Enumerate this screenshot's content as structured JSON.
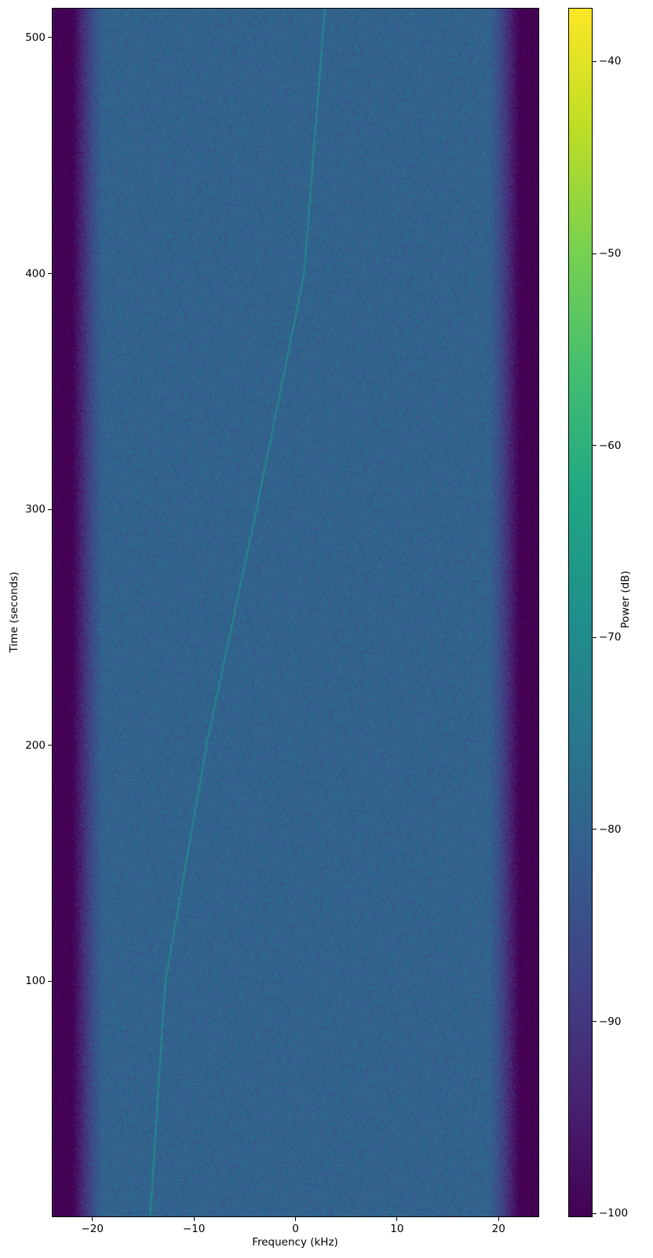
{
  "chart_data": {
    "type": "heatmap",
    "title": "",
    "xlabel": "Frequency (kHz)",
    "ylabel": "Time (seconds)",
    "xlim": [
      -24,
      24
    ],
    "ylim": [
      0,
      512.6
    ],
    "xticks": [
      -20,
      -10,
      0,
      10,
      20
    ],
    "xtick_labels": [
      "−20",
      "−10",
      "0",
      "10",
      "20"
    ],
    "yticks": [
      100,
      200,
      300,
      400,
      500
    ],
    "ytick_labels": [
      "100",
      "200",
      "300",
      "400",
      "500"
    ],
    "colormap": "viridis",
    "colorbar": {
      "label": "Power (dB)",
      "range": [
        -100.2,
        -37.2
      ],
      "ticks": [
        -40,
        -50,
        -60,
        -70,
        -80,
        -90,
        -100
      ],
      "tick_labels": [
        "−40",
        "−50",
        "−60",
        "−70",
        "−80",
        "−90",
        "−100"
      ]
    },
    "noise_floor_db": -80,
    "band_edge_db": -100,
    "passband_khz": [
      -19,
      19
    ],
    "rolloff_edges_khz": [
      -22,
      22
    ],
    "signal_track": {
      "time_s": [
        0,
        100,
        203,
        300,
        400,
        509
      ],
      "freq_khz": [
        -14.4,
        -12.9,
        -8.7,
        -3.9,
        0.8,
        2.8
      ],
      "level_db": -72
    },
    "grid": false
  }
}
